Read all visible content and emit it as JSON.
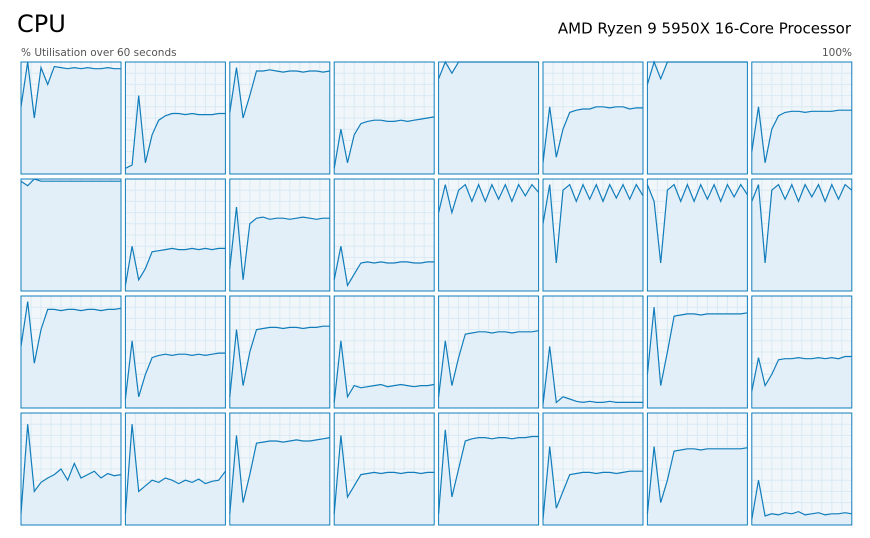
{
  "header": {
    "title": "CPU",
    "processor": "AMD Ryzen 9 5950X 16-Core Processor",
    "subtitle": "% Utilisation over 60 seconds",
    "max_label": "100%"
  },
  "ylim": [
    0,
    100
  ],
  "cores": [
    [
      60,
      100,
      50,
      95,
      80,
      96,
      95,
      94,
      95,
      94,
      95,
      94,
      94,
      95,
      94,
      94
    ],
    [
      5,
      8,
      70,
      10,
      35,
      48,
      52,
      54,
      54,
      53,
      54,
      53,
      53,
      53,
      54,
      54
    ],
    [
      55,
      95,
      50,
      70,
      92,
      92,
      93,
      92,
      91,
      92,
      92,
      91,
      92,
      92,
      91,
      92
    ],
    [
      5,
      40,
      10,
      35,
      45,
      47,
      48,
      48,
      47,
      47,
      48,
      47,
      48,
      49,
      50,
      51
    ],
    [
      85,
      100,
      90,
      100,
      100,
      100,
      100,
      100,
      100,
      100,
      100,
      100,
      100,
      100,
      100,
      100
    ],
    [
      10,
      60,
      15,
      40,
      55,
      57,
      58,
      58,
      60,
      60,
      59,
      60,
      60,
      58,
      59,
      59
    ],
    [
      80,
      100,
      85,
      100,
      100,
      100,
      100,
      100,
      100,
      100,
      100,
      100,
      100,
      100,
      100,
      100
    ],
    [
      20,
      60,
      10,
      40,
      52,
      55,
      56,
      56,
      55,
      56,
      56,
      56,
      56,
      57,
      57,
      57
    ],
    [
      98,
      94,
      100,
      98,
      98,
      98,
      98,
      98,
      98,
      98,
      98,
      98,
      98,
      98,
      98,
      98
    ],
    [
      5,
      40,
      10,
      20,
      35,
      36,
      37,
      38,
      37,
      37,
      38,
      37,
      38,
      37,
      38,
      38
    ],
    [
      20,
      75,
      10,
      60,
      65,
      66,
      64,
      65,
      65,
      64,
      65,
      66,
      65,
      64,
      65,
      65
    ],
    [
      10,
      40,
      5,
      15,
      25,
      26,
      25,
      26,
      25,
      25,
      26,
      26,
      25,
      25,
      26,
      26
    ],
    [
      70,
      95,
      70,
      90,
      95,
      80,
      95,
      80,
      95,
      82,
      95,
      80,
      95,
      85,
      95,
      88
    ],
    [
      60,
      95,
      25,
      90,
      95,
      80,
      95,
      82,
      95,
      80,
      95,
      83,
      95,
      82,
      95,
      85
    ],
    [
      95,
      80,
      25,
      90,
      95,
      80,
      95,
      80,
      95,
      82,
      95,
      80,
      95,
      84,
      95,
      86
    ],
    [
      80,
      95,
      25,
      90,
      95,
      82,
      95,
      80,
      95,
      84,
      95,
      80,
      95,
      82,
      95,
      90
    ],
    [
      55,
      95,
      40,
      70,
      88,
      88,
      87,
      88,
      88,
      87,
      88,
      88,
      87,
      88,
      88,
      89
    ],
    [
      8,
      60,
      10,
      30,
      45,
      47,
      48,
      47,
      48,
      48,
      47,
      48,
      47,
      48,
      49,
      49
    ],
    [
      10,
      70,
      20,
      50,
      70,
      71,
      72,
      72,
      71,
      72,
      72,
      71,
      72,
      72,
      73,
      73
    ],
    [
      5,
      60,
      10,
      20,
      18,
      19,
      20,
      21,
      19,
      20,
      21,
      20,
      19,
      20,
      20,
      21
    ],
    [
      10,
      60,
      20,
      45,
      66,
      67,
      68,
      68,
      67,
      68,
      68,
      67,
      68,
      68,
      68,
      69
    ],
    [
      3,
      55,
      5,
      10,
      8,
      6,
      5,
      6,
      5,
      5,
      6,
      5,
      5,
      5,
      5,
      5
    ],
    [
      30,
      90,
      20,
      50,
      82,
      83,
      84,
      84,
      83,
      84,
      84,
      84,
      84,
      84,
      84,
      85
    ],
    [
      15,
      45,
      20,
      30,
      43,
      44,
      44,
      45,
      44,
      44,
      45,
      44,
      45,
      44,
      46,
      46
    ],
    [
      10,
      90,
      30,
      38,
      42,
      45,
      50,
      40,
      55,
      42,
      45,
      48,
      42,
      46,
      44,
      45
    ],
    [
      10,
      90,
      30,
      35,
      40,
      38,
      42,
      40,
      37,
      40,
      38,
      41,
      37,
      39,
      40,
      48
    ],
    [
      10,
      80,
      20,
      45,
      73,
      74,
      75,
      75,
      74,
      75,
      76,
      75,
      75,
      76,
      77,
      78
    ],
    [
      10,
      80,
      25,
      35,
      45,
      46,
      47,
      46,
      47,
      47,
      46,
      47,
      47,
      46,
      47,
      47
    ],
    [
      10,
      85,
      25,
      50,
      75,
      77,
      78,
      78,
      77,
      78,
      78,
      77,
      78,
      78,
      79,
      79
    ],
    [
      5,
      70,
      15,
      30,
      45,
      46,
      47,
      47,
      46,
      47,
      47,
      46,
      47,
      48,
      48,
      48
    ],
    [
      10,
      70,
      20,
      40,
      66,
      67,
      68,
      68,
      67,
      68,
      68,
      68,
      68,
      68,
      68,
      69
    ],
    [
      5,
      40,
      8,
      10,
      9,
      11,
      10,
      12,
      9,
      10,
      11,
      9,
      10,
      10,
      11,
      10
    ]
  ]
}
